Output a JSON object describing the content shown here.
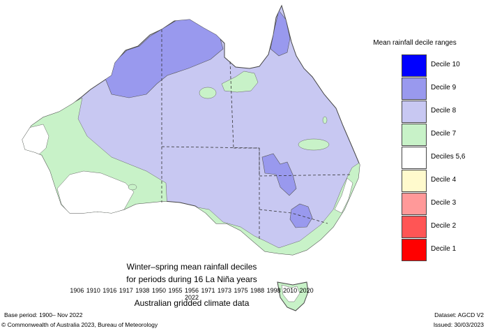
{
  "map": {
    "region": "Australia",
    "colors": {
      "decile_10": "#0000ff",
      "decile_9": "#9999ee",
      "decile_8": "#c8c8f2",
      "decile_7": "#c8f2c8",
      "deciles_5_6": "#ffffff",
      "decile_4": "#fffacd",
      "decile_3": "#ff9999",
      "decile_2": "#ff5555",
      "decile_1": "#ff0000"
    }
  },
  "legend": {
    "title": "Mean rainfall decile ranges",
    "items": [
      {
        "label": "Decile 10",
        "color": "#0000ff"
      },
      {
        "label": "Decile 9",
        "color": "#9999ee"
      },
      {
        "label": "Decile 8",
        "color": "#c8c8f2"
      },
      {
        "label": "Decile 7",
        "color": "#c8f2c8"
      },
      {
        "label": "Deciles 5,6",
        "color": "#ffffff"
      },
      {
        "label": "Decile 4",
        "color": "#fffacd"
      },
      {
        "label": "Decile 3",
        "color": "#ff9999"
      },
      {
        "label": "Decile 2",
        "color": "#ff5555"
      },
      {
        "label": "Decile 1",
        "color": "#ff0000"
      }
    ]
  },
  "caption": {
    "line1": "Winter–spring mean rainfall deciles",
    "line2": "for periods during 16 La Niña years",
    "years": "1906 1910 1916 1917 1938 1950 1955 1956 1971 1973 1975 1988 1998 2010 2020 2022",
    "line4": "Australian gridded climate data"
  },
  "footer": {
    "base_period": "Base period: 1900– Nov 2022",
    "copyright": "© Commonwealth of Australia 2023, Bureau of Meteorology",
    "dataset": "Dataset: AGCD V2",
    "issued": "Issued: 30/03/2023"
  }
}
